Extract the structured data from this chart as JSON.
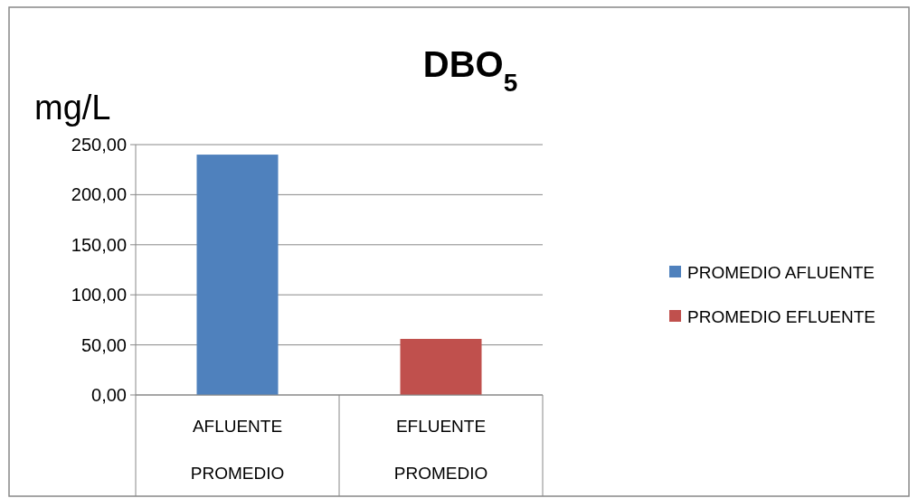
{
  "chart_data": {
    "type": "bar",
    "title": "DBO$_{5}$",
    "ylabel": "mg/L",
    "categories": [
      "AFLUENTE PROMEDIO",
      "EFLUENTE PROMEDIO"
    ],
    "series": [
      {
        "name": "PROMEDIO AFLUENTE",
        "color": "#4f81bd",
        "values": [
          240,
          null
        ]
      },
      {
        "name": "PROMEDIO EFLUENTE",
        "color": "#c0504d",
        "values": [
          null,
          56
        ]
      }
    ],
    "ylim": [
      0,
      250
    ],
    "yticks": [
      {
        "value": 0,
        "label": "0,00"
      },
      {
        "value": 50,
        "label": "50,00"
      },
      {
        "value": 100,
        "label": "100,00"
      },
      {
        "value": 150,
        "label": "150,00"
      },
      {
        "value": 200,
        "label": "200,00"
      },
      {
        "value": 250,
        "label": "250,00"
      }
    ],
    "grid": "y",
    "legend": "right"
  }
}
